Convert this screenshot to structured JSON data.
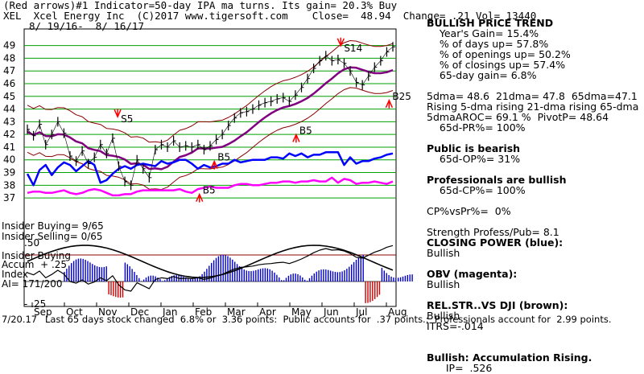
{
  "header": {
    "line1": "(Red arrows)#1 Indicator=50-day IPA ma turns. Its gain= 20.3% Buy",
    "line2": "XEL  Xcel Energy Inc  (C)2017 www.tigersoft.com    Close=  48.94  Change= .21 Vol= 13440",
    "date_range": "8/ 19/16-  8/ 16/17"
  },
  "side_panel": [
    {
      "text": "BULLISH PRICE TREND",
      "bold": true
    },
    {
      "text": "    Year's Gain= 15.4%",
      "bold": false
    },
    {
      "text": "    % of days up= 57.8%",
      "bold": false
    },
    {
      "text": "    % of openings up= 50.2%",
      "bold": false
    },
    {
      "text": "    % of closings up= 57.4%",
      "bold": false
    },
    {
      "text": "    65-day gain= 6.8%",
      "bold": false
    },
    {
      "text": "",
      "bold": false
    },
    {
      "text": "5dma= 48.6  21dma= 47.8  65dma=47.1",
      "bold": false
    },
    {
      "text": "Rising 5-dma rising 21-dma rising 65-dma",
      "bold": false
    },
    {
      "text": "5dmaAROC= 69.1 %  PivotP= 48.64",
      "bold": false
    },
    {
      "text": "    65d-PR%= 100%",
      "bold": false
    },
    {
      "text": "",
      "bold": false
    },
    {
      "text": "Public is bearish",
      "bold": true
    },
    {
      "text": "    65d-OP%= 31%",
      "bold": false
    },
    {
      "text": "",
      "bold": false
    },
    {
      "text": "Professionals are bullish",
      "bold": true
    },
    {
      "text": "    65d-CP%= 100%",
      "bold": false
    },
    {
      "text": "",
      "bold": false
    },
    {
      "text": "CP%vsPr%=  0%",
      "bold": false
    },
    {
      "text": "",
      "bold": false
    },
    {
      "text": "Strength Profess/Pub= 8.1",
      "bold": false
    },
    {
      "text": "CLOSING POWER (blue):",
      "bold": true
    },
    {
      "text": "Bullish",
      "bold": false
    },
    {
      "text": "",
      "bold": false
    },
    {
      "text": "OBV (magenta):",
      "bold": true
    },
    {
      "text": "Bullish",
      "bold": false
    },
    {
      "text": "",
      "bold": false
    },
    {
      "text": "REL.STR..VS DJI (brown):",
      "bold": true
    },
    {
      "text": "Bullish",
      "bold": false
    },
    {
      "text": "ITRS=-.014",
      "bold": false
    },
    {
      "text": "",
      "bold": false
    },
    {
      "text": "",
      "bold": false
    },
    {
      "text": "Bullish: Accumulation Rising.",
      "bold": true
    },
    {
      "text": "      IP=  .526",
      "bold": false
    }
  ],
  "indicator_labels": {
    "buying_top": "Insider Buying= 9/65",
    "selling": "Insider Selling= 0/65",
    "plus50": ".50",
    "insider_buying": "Insider Buying",
    "accum": "Accum  + .25",
    "index": "Index",
    "ai": "AI= 171/200",
    "minus25": "- .25"
  },
  "footer": "Last 65 days stock changed  6.8% or  3.36 points:  Public accounts for  .37 points.;  Professionals account for  2.99 points.",
  "footer_prefix": "7/20.17",
  "colors": {
    "price": "#000000",
    "upper_band": "#8b0000",
    "ma": "#800080",
    "closing_power": "#0000ff",
    "obv": "#ff00ff",
    "grid": "#00a000",
    "accum_pos": "#0000cc",
    "accum_neg": "#cc0000",
    "arrow": "#ff0000"
  },
  "chart_data": {
    "type": "line",
    "ylim": [
      36.5,
      49.8
    ],
    "yticks": [
      37,
      38,
      39,
      40,
      41,
      42,
      43,
      44,
      45,
      46,
      47,
      48,
      49
    ],
    "xticks": [
      "Sep",
      "Oct",
      "Nov",
      "Dec",
      "Jan",
      "Feb",
      "Mar",
      "Apr",
      "May",
      "Jun",
      "Jul",
      "Aug"
    ],
    "annotations": [
      {
        "label": "S5",
        "x": 0.26,
        "y": 43.2
      },
      {
        "label": "S14",
        "x": 0.86,
        "y": 48.8
      },
      {
        "label": "B5",
        "x": 0.52,
        "y": 40.2
      },
      {
        "label": "B5",
        "x": 0.74,
        "y": 42.3
      },
      {
        "label": "B5",
        "x": 0.48,
        "y": 37.6
      },
      {
        "label": "B25",
        "x": 0.99,
        "y": 45.0
      }
    ],
    "series": [
      {
        "values": [
          42.4,
          41.9,
          42.8,
          41.2,
          42.0,
          43.0,
          42.1,
          40.3,
          39.9,
          40.7,
          39.7,
          40.2,
          41.2,
          40.5,
          41.7,
          39.5,
          38.3,
          38.0,
          40.0,
          39.3,
          38.6,
          40.8,
          41.2,
          41.0,
          41.5,
          41.0,
          41.1,
          41.0,
          41.2,
          40.8,
          41.1,
          41.6,
          42.0,
          42.7,
          43.3,
          43.7,
          43.8,
          44.0,
          44.3,
          44.5,
          44.6,
          44.8,
          44.9,
          44.6,
          45.1,
          45.7,
          46.4,
          47.2,
          47.8,
          48.2,
          47.8,
          47.9,
          47.6,
          47.0,
          46.1,
          45.9,
          46.6,
          47.3,
          47.8,
          48.5,
          48.9
        ]
      },
      {
        "values": [
          38.9,
          38.0,
          39.2,
          39.6,
          38.8,
          39.4,
          39.8,
          39.6,
          39.1,
          39.5,
          39.9,
          39.6,
          38.2,
          38.4,
          38.9,
          39.3,
          39.5,
          39.3,
          39.6,
          39.7,
          39.6,
          39.5,
          39.9,
          39.7,
          39.8,
          40.0,
          40.0,
          39.7,
          39.3,
          39.6,
          39.4,
          39.5,
          39.7,
          39.7,
          40.0,
          39.8,
          39.9,
          40.0,
          40.0,
          40.0,
          40.2,
          40.2,
          40.1,
          40.5,
          40.3,
          40.5,
          40.2,
          40.4,
          40.4,
          40.6,
          40.6,
          40.6,
          39.6,
          40.2,
          39.7,
          39.9,
          39.9,
          40.1,
          40.2,
          40.4,
          40.5
        ]
      },
      {
        "values": [
          37.4,
          37.5,
          37.5,
          37.4,
          37.4,
          37.5,
          37.6,
          37.4,
          37.3,
          37.4,
          37.6,
          37.7,
          37.6,
          37.4,
          37.2,
          37.2,
          37.3,
          37.3,
          37.5,
          37.6,
          37.6,
          37.6,
          37.6,
          37.6,
          37.6,
          37.7,
          37.5,
          37.4,
          37.7,
          37.8,
          37.9,
          37.8,
          37.8,
          37.8,
          38.0,
          38.1,
          38.1,
          38.0,
          38.0,
          38.1,
          38.2,
          38.2,
          38.3,
          38.3,
          38.2,
          38.3,
          38.3,
          38.4,
          38.3,
          38.3,
          38.6,
          38.2,
          38.5,
          38.4,
          38.1,
          38.2,
          38.2,
          38.3,
          38.2,
          38.1,
          38.3
        ]
      }
    ]
  }
}
